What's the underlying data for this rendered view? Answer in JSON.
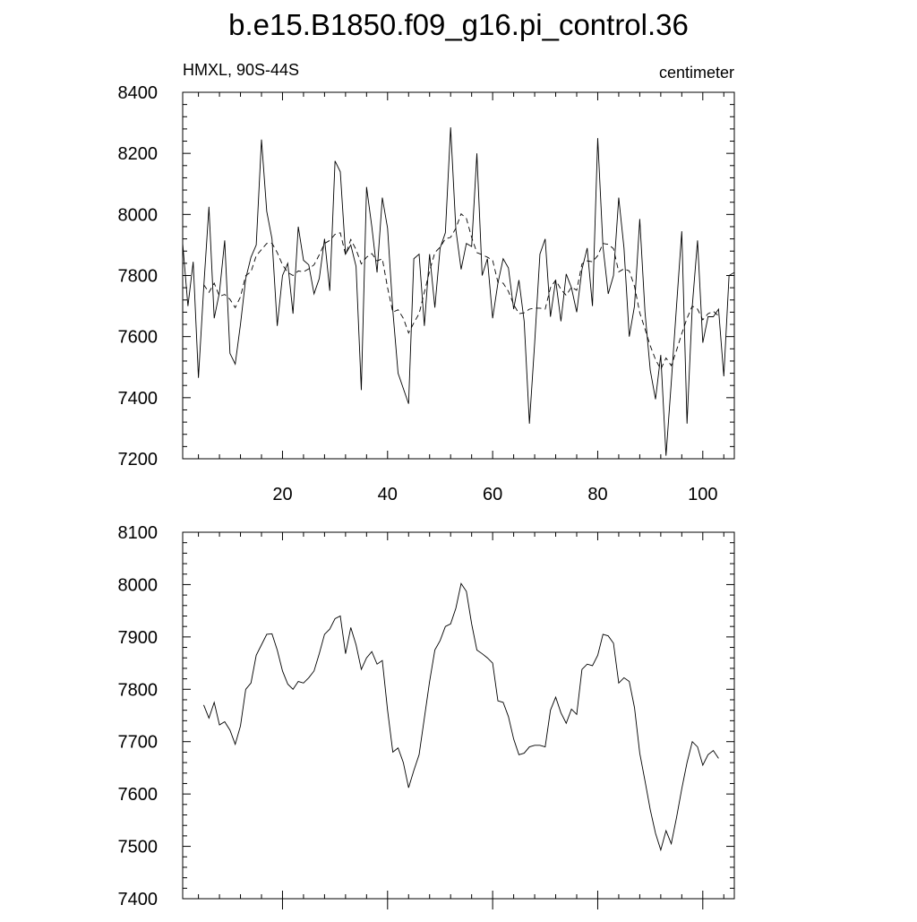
{
  "chart_data": [
    {
      "type": "line",
      "title": "b.e15.B1850.f09_g16.pi_control.36",
      "left_string": "HMXL, 90S-44S",
      "right_string": "centimeter",
      "x": [
        1,
        2,
        3,
        4,
        5,
        6,
        7,
        8,
        9,
        10,
        11,
        12,
        13,
        14,
        15,
        16,
        17,
        18,
        19,
        20,
        21,
        22,
        23,
        24,
        25,
        26,
        27,
        28,
        29,
        30,
        31,
        32,
        33,
        34,
        35,
        36,
        37,
        38,
        39,
        40,
        41,
        42,
        43,
        44,
        45,
        46,
        47,
        48,
        49,
        50,
        51,
        52,
        53,
        54,
        55,
        56,
        57,
        58,
        59,
        60,
        61,
        62,
        63,
        64,
        65,
        66,
        67,
        68,
        69,
        70,
        71,
        72,
        73,
        74,
        75,
        76,
        77,
        78,
        79,
        80,
        81,
        82,
        83,
        84,
        85,
        86,
        87,
        88,
        89,
        90,
        91,
        92,
        93,
        94,
        95,
        96,
        97,
        98,
        99,
        100,
        101,
        102,
        103,
        104,
        105,
        106
      ],
      "series": [
        {
          "color": "#000000",
          "line_style": "solid",
          "values": [
            7905,
            7700,
            7845,
            7465,
            7760,
            8025,
            7660,
            7745,
            7915,
            7545,
            7510,
            7640,
            7790,
            7860,
            7900,
            8245,
            8010,
            7920,
            7635,
            7800,
            7840,
            7675,
            7960,
            7850,
            7835,
            7740,
            7790,
            7920,
            7750,
            8175,
            8140,
            7870,
            7900,
            7830,
            7425,
            8090,
            7960,
            7810,
            8055,
            7955,
            7685,
            7480,
            7430,
            7380,
            7855,
            7870,
            7635,
            7870,
            7695,
            7890,
            7940,
            8285,
            7950,
            7820,
            7905,
            7895,
            8200,
            7800,
            7855,
            7660,
            7775,
            7855,
            7825,
            7690,
            7785,
            7650,
            7315,
            7580,
            7870,
            7920,
            7665,
            7785,
            7650,
            7805,
            7760,
            7680,
            7820,
            7890,
            7700,
            8250,
            7895,
            7740,
            7800,
            8055,
            7890,
            7600,
            7700,
            7985,
            7680,
            7490,
            7395,
            7540,
            7210,
            7450,
            7700,
            7945,
            7315,
            7700,
            7915,
            7580,
            7665,
            7665,
            7690,
            7470,
            7800,
            7810
          ]
        },
        {
          "color": "#000000",
          "line_style": "dashed",
          "values": [
            null,
            null,
            null,
            null,
            7770,
            7745,
            7775,
            7732,
            7738,
            7722,
            7695,
            7730,
            7800,
            7812,
            7865,
            7885,
            7905,
            7906,
            7875,
            7835,
            7810,
            7800,
            7815,
            7812,
            7822,
            7835,
            7868,
            7905,
            7915,
            7935,
            7940,
            7868,
            7918,
            7885,
            7838,
            7860,
            7872,
            7848,
            7855,
            7760,
            7680,
            7688,
            7660,
            7612,
            7645,
            7675,
            7745,
            7815,
            7875,
            7893,
            7920,
            7925,
            7955,
            8002,
            7987,
            7925,
            7875,
            7868,
            7860,
            7850,
            7778,
            7775,
            7748,
            7705,
            7675,
            7678,
            7690,
            7693,
            7693,
            7690,
            7760,
            7785,
            7755,
            7735,
            7762,
            7752,
            7838,
            7848,
            7845,
            7865,
            7905,
            7902,
            7888,
            7812,
            7822,
            7815,
            7765,
            7678,
            7625,
            7570,
            7525,
            7493,
            7530,
            7505,
            7555,
            7610,
            7660,
            7700,
            7690,
            7655,
            7675,
            7683,
            7668,
            null,
            null,
            null
          ]
        }
      ],
      "xlim": [
        1,
        106
      ],
      "xticks": [
        20,
        40,
        60,
        80,
        100
      ],
      "xticklabels": true,
      "xminor": 4,
      "ylim": [
        7200,
        8400
      ],
      "yticks": [
        7200,
        7400,
        7600,
        7800,
        8000,
        8200,
        8400
      ],
      "yminor": 4
    },
    {
      "type": "line",
      "x": [
        1,
        2,
        3,
        4,
        5,
        6,
        7,
        8,
        9,
        10,
        11,
        12,
        13,
        14,
        15,
        16,
        17,
        18,
        19,
        20,
        21,
        22,
        23,
        24,
        25,
        26,
        27,
        28,
        29,
        30,
        31,
        32,
        33,
        34,
        35,
        36,
        37,
        38,
        39,
        40,
        41,
        42,
        43,
        44,
        45,
        46,
        47,
        48,
        49,
        50,
        51,
        52,
        53,
        54,
        55,
        56,
        57,
        58,
        59,
        60,
        61,
        62,
        63,
        64,
        65,
        66,
        67,
        68,
        69,
        70,
        71,
        72,
        73,
        74,
        75,
        76,
        77,
        78,
        79,
        80,
        81,
        82,
        83,
        84,
        85,
        86,
        87,
        88,
        89,
        90,
        91,
        92,
        93,
        94,
        95,
        96,
        97,
        98,
        99,
        100,
        101,
        102,
        103,
        104,
        105,
        106
      ],
      "series": [
        {
          "color": "#000000",
          "line_style": "solid",
          "values": [
            null,
            null,
            null,
            null,
            7770,
            7745,
            7775,
            7732,
            7738,
            7722,
            7695,
            7730,
            7800,
            7812,
            7865,
            7885,
            7905,
            7906,
            7875,
            7835,
            7810,
            7800,
            7815,
            7812,
            7822,
            7835,
            7868,
            7905,
            7915,
            7935,
            7940,
            7868,
            7918,
            7885,
            7838,
            7860,
            7872,
            7848,
            7855,
            7760,
            7680,
            7688,
            7660,
            7612,
            7645,
            7675,
            7745,
            7815,
            7875,
            7893,
            7920,
            7925,
            7955,
            8002,
            7987,
            7925,
            7875,
            7868,
            7860,
            7850,
            7778,
            7775,
            7748,
            7705,
            7675,
            7678,
            7690,
            7693,
            7693,
            7690,
            7760,
            7785,
            7755,
            7735,
            7762,
            7752,
            7838,
            7848,
            7845,
            7865,
            7905,
            7902,
            7888,
            7812,
            7822,
            7815,
            7765,
            7678,
            7625,
            7570,
            7525,
            7493,
            7530,
            7505,
            7555,
            7610,
            7660,
            7700,
            7690,
            7655,
            7675,
            7683,
            7668,
            null,
            null,
            null
          ]
        }
      ],
      "xlim": [
        1,
        106
      ],
      "xticks": [
        20,
        40,
        60,
        80,
        100
      ],
      "xticklabels": false,
      "xminor": 4,
      "ylim": [
        7400,
        8100
      ],
      "yticks": [
        7400,
        7500,
        7600,
        7700,
        7800,
        7900,
        8000,
        8100
      ],
      "yminor": 4
    }
  ]
}
